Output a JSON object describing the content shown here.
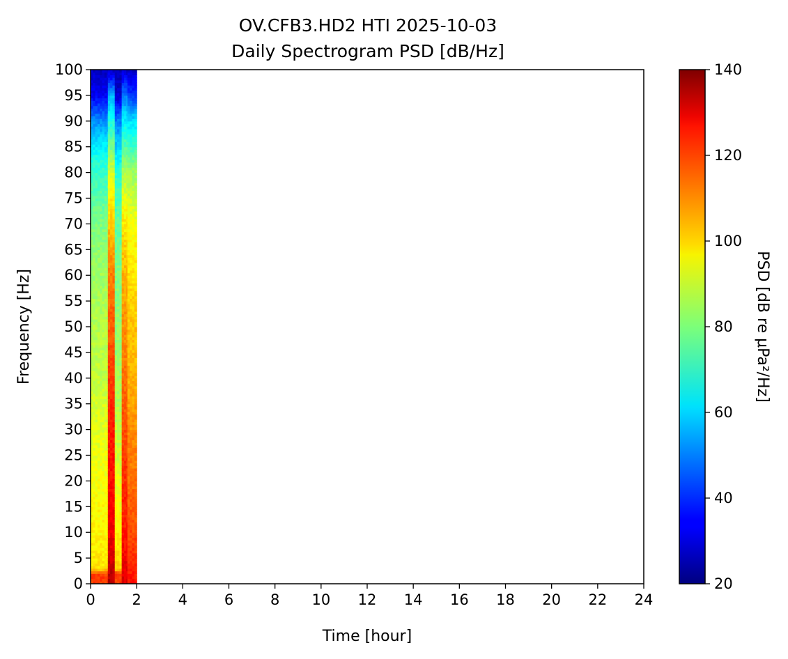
{
  "chart_data": {
    "type": "heatmap",
    "title": "OV.CFB3.HD2 HTI 2025-10-03",
    "subtitle": "Daily Spectrogram PSD [dB/Hz]",
    "xlabel": "Time [hour]",
    "ylabel": "Frequency [Hz]",
    "xlim": [
      0,
      24
    ],
    "ylim": [
      0,
      100
    ],
    "x_ticks": [
      "0",
      "2",
      "4",
      "6",
      "8",
      "10",
      "12",
      "14",
      "16",
      "18",
      "20",
      "22",
      "24"
    ],
    "y_ticks": [
      "0",
      "5",
      "10",
      "15",
      "20",
      "25",
      "30",
      "35",
      "40",
      "45",
      "50",
      "55",
      "60",
      "65",
      "70",
      "75",
      "80",
      "85",
      "90",
      "95",
      "100"
    ],
    "data_time_range_hours": [
      0,
      2
    ],
    "colorbar": {
      "label": "PSD [dB re μPa²/Hz]",
      "colormap": "jet",
      "range": [
        20,
        140
      ],
      "ticks": [
        "20",
        "40",
        "60",
        "80",
        "100",
        "120",
        "140"
      ]
    },
    "psd_profiles": [
      {
        "time_range": [
          0,
          0.75
        ],
        "values_db_at_freqs": {
          "0": 118,
          "2": 118,
          "3": 98,
          "10": 96,
          "20": 94,
          "30": 92,
          "40": 88,
          "50": 86,
          "60": 84,
          "70": 80,
          "75": 76,
          "80": 72,
          "85": 64,
          "90": 52,
          "95": 34,
          "100": 28
        }
      },
      {
        "time_range": [
          0.75,
          1.05
        ],
        "values_db_at_freqs": {
          "0": 134,
          "5": 130,
          "10": 126,
          "20": 124,
          "30": 122,
          "40": 118,
          "50": 114,
          "60": 110,
          "70": 102,
          "80": 90,
          "90": 68,
          "95": 56,
          "100": 28
        }
      },
      {
        "time_range": [
          1.05,
          1.35
        ],
        "values_db_at_freqs": {
          "0": 118,
          "2": 118,
          "3": 100,
          "10": 96,
          "20": 92,
          "30": 88,
          "40": 84,
          "50": 82,
          "60": 80,
          "70": 76,
          "80": 70,
          "90": 50,
          "95": 30,
          "100": 26
        }
      },
      {
        "time_range": [
          1.35,
          1.6
        ],
        "values_db_at_freqs": {
          "0": 130,
          "5": 126,
          "10": 122,
          "20": 120,
          "30": 116,
          "40": 112,
          "50": 108,
          "60": 104,
          "70": 98,
          "80": 86,
          "90": 64,
          "95": 50,
          "100": 28
        }
      },
      {
        "time_range": [
          1.6,
          2.0
        ],
        "values_db_at_freqs": {
          "0": 124,
          "5": 120,
          "10": 116,
          "20": 112,
          "30": 108,
          "40": 104,
          "50": 102,
          "60": 98,
          "70": 94,
          "80": 84,
          "90": 62,
          "95": 42,
          "100": 28
        }
      }
    ]
  }
}
